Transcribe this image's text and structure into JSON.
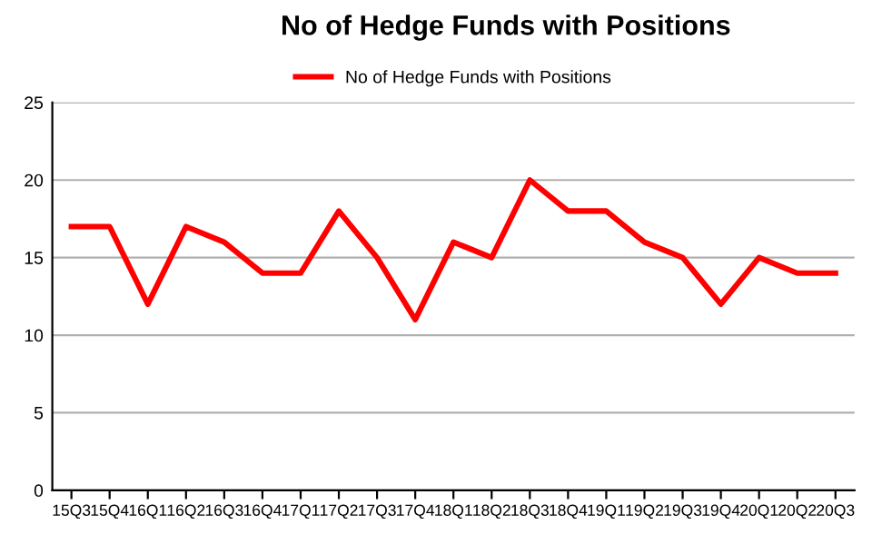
{
  "chart_data": {
    "type": "line",
    "title": "No of Hedge Funds with Positions",
    "categories": [
      "15Q3",
      "15Q4",
      "16Q1",
      "16Q2",
      "16Q3",
      "16Q4",
      "17Q1",
      "17Q2",
      "17Q3",
      "17Q4",
      "18Q1",
      "18Q2",
      "18Q3",
      "18Q4",
      "19Q1",
      "19Q2",
      "19Q3",
      "19Q4",
      "20Q1",
      "20Q2",
      "20Q3"
    ],
    "series": [
      {
        "name": "No of Hedge Funds with Positions",
        "color": "#ff0000",
        "values": [
          17,
          17,
          12,
          17,
          16,
          14,
          14,
          18,
          15,
          11,
          16,
          15,
          20,
          18,
          18,
          16,
          15,
          12,
          15,
          14,
          14
        ]
      }
    ],
    "ylim": [
      0,
      25
    ],
    "yticks": [
      0,
      5,
      10,
      15,
      20,
      25
    ],
    "grid": "y",
    "legend": "top",
    "marker": "none",
    "line_style": "solid"
  }
}
